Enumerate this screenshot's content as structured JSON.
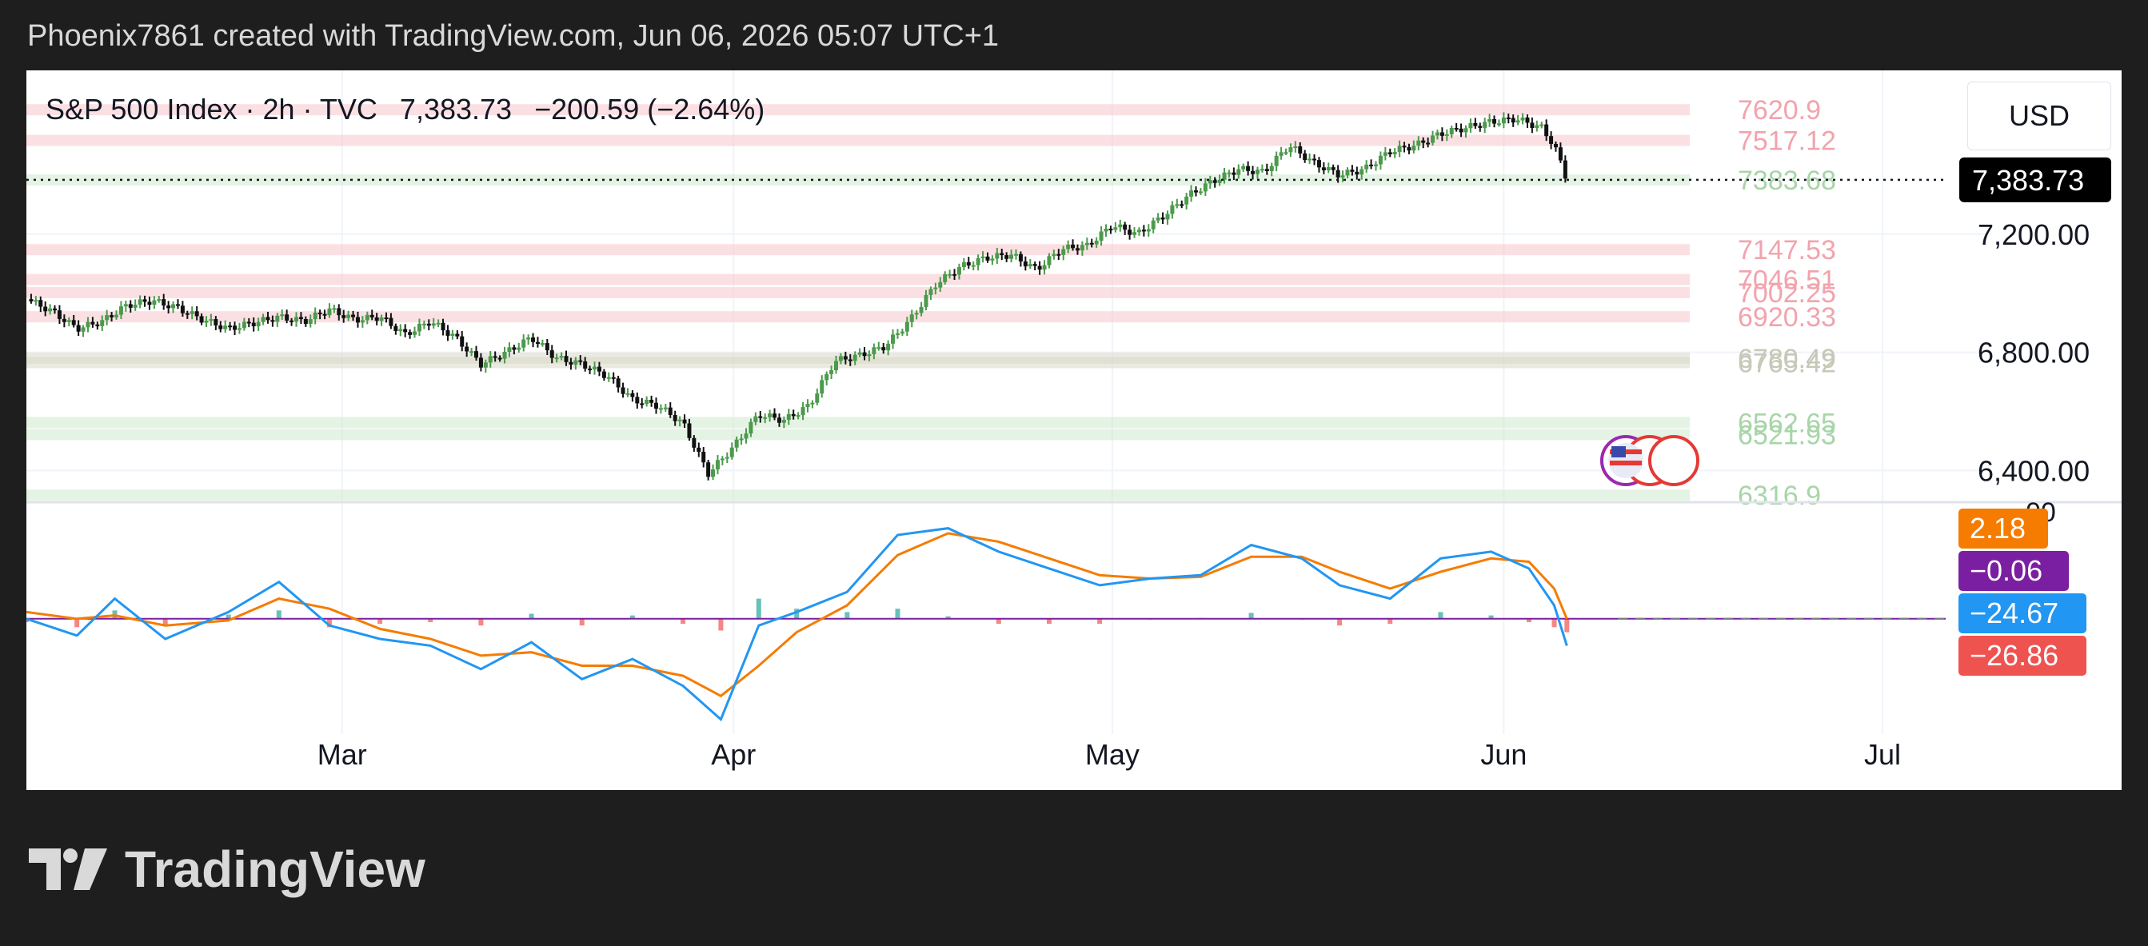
{
  "header": {
    "credit": "Phoenix7861 created with TradingView.com, Jun 06, 2026 05:07 UTC+1"
  },
  "legend": {
    "symbol": "S&P 500 Index · 2h · TVC",
    "price": "7,383.73",
    "change": "−200.59 (−2.64%)"
  },
  "currency": "USD",
  "branding": {
    "logo_text": "TradingView"
  },
  "colors": {
    "up": "#4c9a4c",
    "down": "#111111",
    "macd": "#2196f3",
    "signal": "#f57c00",
    "hist_up": "#26a69a",
    "hist_down": "#ef5350",
    "zone_red": "#f8c6cc",
    "zone_green": "#cfe9cf"
  },
  "chart_data": [
    {
      "type": "candlestick",
      "title": "S&P 500 Index · 2h · TVC",
      "x_range": [
        "2026-02-04",
        "2026-07-06"
      ],
      "x_ticks": [
        "Mar",
        "Apr",
        "May",
        "Jun",
        "Jul"
      ],
      "x_tick_dates": [
        "2026-03-01",
        "2026-04-01",
        "2026-05-01",
        "2026-06-01",
        "2026-07-01"
      ],
      "ylim": [
        6320,
        7700
      ],
      "y_ticks": [
        6400,
        6800,
        7200
      ],
      "y_tick_labels": [
        "6,400.00",
        "6,800.00",
        "7,200.00"
      ],
      "last_price": 7383.73,
      "last_price_label": "7,383.73",
      "grid": true,
      "series_points": [
        [
          "2026-02-04",
          6980
        ],
        [
          "2026-02-06",
          6940
        ],
        [
          "2026-02-08",
          6880
        ],
        [
          "2026-02-10",
          6905
        ],
        [
          "2026-02-12",
          6960
        ],
        [
          "2026-02-14",
          6975
        ],
        [
          "2026-02-16",
          6950
        ],
        [
          "2026-02-18",
          6910
        ],
        [
          "2026-02-20",
          6880
        ],
        [
          "2026-02-22",
          6900
        ],
        [
          "2026-02-24",
          6920
        ],
        [
          "2026-02-26",
          6905
        ],
        [
          "2026-02-28",
          6945
        ],
        [
          "2026-03-02",
          6910
        ],
        [
          "2026-03-04",
          6920
        ],
        [
          "2026-03-06",
          6860
        ],
        [
          "2026-03-08",
          6905
        ],
        [
          "2026-03-10",
          6850
        ],
        [
          "2026-03-12",
          6760
        ],
        [
          "2026-03-14",
          6800
        ],
        [
          "2026-03-16",
          6850
        ],
        [
          "2026-03-18",
          6780
        ],
        [
          "2026-03-20",
          6760
        ],
        [
          "2026-03-22",
          6720
        ],
        [
          "2026-03-24",
          6640
        ],
        [
          "2026-03-26",
          6620
        ],
        [
          "2026-03-28",
          6560
        ],
        [
          "2026-03-30",
          6390
        ],
        [
          "2026-04-01",
          6480
        ],
        [
          "2026-04-03",
          6590
        ],
        [
          "2026-04-05",
          6570
        ],
        [
          "2026-04-07",
          6620
        ],
        [
          "2026-04-09",
          6770
        ],
        [
          "2026-04-11",
          6790
        ],
        [
          "2026-04-13",
          6820
        ],
        [
          "2026-04-15",
          6910
        ],
        [
          "2026-04-17",
          7030
        ],
        [
          "2026-04-19",
          7090
        ],
        [
          "2026-04-21",
          7120
        ],
        [
          "2026-04-23",
          7130
        ],
        [
          "2026-04-25",
          7080
        ],
        [
          "2026-04-27",
          7150
        ],
        [
          "2026-04-29",
          7160
        ],
        [
          "2026-05-01",
          7230
        ],
        [
          "2026-05-03",
          7200
        ],
        [
          "2026-05-05",
          7260
        ],
        [
          "2026-05-07",
          7330
        ],
        [
          "2026-05-09",
          7380
        ],
        [
          "2026-05-11",
          7420
        ],
        [
          "2026-05-13",
          7410
        ],
        [
          "2026-05-15",
          7500
        ],
        [
          "2026-05-17",
          7440
        ],
        [
          "2026-05-19",
          7400
        ],
        [
          "2026-05-21",
          7420
        ],
        [
          "2026-05-23",
          7480
        ],
        [
          "2026-05-25",
          7500
        ],
        [
          "2026-05-27",
          7540
        ],
        [
          "2026-05-29",
          7560
        ],
        [
          "2026-05-31",
          7580
        ],
        [
          "2026-06-02",
          7590
        ],
        [
          "2026-06-04",
          7560
        ],
        [
          "2026-06-05",
          7500
        ],
        [
          "2026-06-06",
          7383.73
        ]
      ],
      "levels": [
        {
          "value": 7620.9,
          "label": "7620.9",
          "kind": "resistance"
        },
        {
          "value": 7517.12,
          "label": "7517.12",
          "kind": "resistance"
        },
        {
          "value": 7383.68,
          "label": "7383.68",
          "kind": "support"
        },
        {
          "value": 7147.53,
          "label": "7147.53",
          "kind": "resistance"
        },
        {
          "value": 7046.51,
          "label": "7046.51",
          "kind": "resistance"
        },
        {
          "value": 7002.25,
          "label": "7002.25",
          "kind": "resistance"
        },
        {
          "value": 6920.33,
          "label": "6920.33",
          "kind": "resistance"
        },
        {
          "value": 6780.49,
          "label": "6780.49",
          "kind": "neutral"
        },
        {
          "value": 6765.42,
          "label": "6765.42",
          "kind": "neutral"
        },
        {
          "value": 6562.65,
          "label": "6562.65",
          "kind": "support"
        },
        {
          "value": 6521.93,
          "label": "6521.93",
          "kind": "support"
        },
        {
          "value": 6316.9,
          "label": "6316.9",
          "kind": "support"
        }
      ]
    },
    {
      "type": "line",
      "indicator": "MACD",
      "ylim": [
        -320,
        300
      ],
      "zero_line": true,
      "y_partial_label": "00",
      "badges": [
        {
          "label": "2.18",
          "color": "#f57c00"
        },
        {
          "label": "−0.06",
          "color": "#7b1fa2"
        },
        {
          "label": "−24.67",
          "color": "#2196f3"
        },
        {
          "label": "−26.86",
          "color": "#ef5350"
        }
      ],
      "macd_points": [
        [
          "2026-02-04",
          0
        ],
        [
          "2026-02-08",
          -50
        ],
        [
          "2026-02-11",
          60
        ],
        [
          "2026-02-15",
          -60
        ],
        [
          "2026-02-20",
          20
        ],
        [
          "2026-02-24",
          110
        ],
        [
          "2026-02-28",
          -20
        ],
        [
          "2026-03-04",
          -60
        ],
        [
          "2026-03-08",
          -80
        ],
        [
          "2026-03-12",
          -150
        ],
        [
          "2026-03-16",
          -70
        ],
        [
          "2026-03-20",
          -180
        ],
        [
          "2026-03-24",
          -120
        ],
        [
          "2026-03-28",
          -200
        ],
        [
          "2026-03-31",
          -300
        ],
        [
          "2026-04-03",
          -20
        ],
        [
          "2026-04-06",
          20
        ],
        [
          "2026-04-10",
          80
        ],
        [
          "2026-04-14",
          250
        ],
        [
          "2026-04-18",
          270
        ],
        [
          "2026-04-22",
          200
        ],
        [
          "2026-04-26",
          150
        ],
        [
          "2026-04-30",
          100
        ],
        [
          "2026-05-04",
          120
        ],
        [
          "2026-05-08",
          130
        ],
        [
          "2026-05-12",
          220
        ],
        [
          "2026-05-16",
          180
        ],
        [
          "2026-05-19",
          100
        ],
        [
          "2026-05-23",
          60
        ],
        [
          "2026-05-27",
          180
        ],
        [
          "2026-05-31",
          200
        ],
        [
          "2026-06-03",
          150
        ],
        [
          "2026-06-05",
          40
        ],
        [
          "2026-06-06",
          -80
        ]
      ],
      "signal_points": [
        [
          "2026-02-04",
          20
        ],
        [
          "2026-02-08",
          0
        ],
        [
          "2026-02-11",
          10
        ],
        [
          "2026-02-15",
          -20
        ],
        [
          "2026-02-20",
          -5
        ],
        [
          "2026-02-24",
          60
        ],
        [
          "2026-02-28",
          30
        ],
        [
          "2026-03-04",
          -30
        ],
        [
          "2026-03-08",
          -60
        ],
        [
          "2026-03-12",
          -110
        ],
        [
          "2026-03-16",
          -100
        ],
        [
          "2026-03-20",
          -140
        ],
        [
          "2026-03-24",
          -140
        ],
        [
          "2026-03-28",
          -170
        ],
        [
          "2026-03-31",
          -230
        ],
        [
          "2026-04-03",
          -140
        ],
        [
          "2026-04-06",
          -40
        ],
        [
          "2026-04-10",
          40
        ],
        [
          "2026-04-14",
          190
        ],
        [
          "2026-04-18",
          255
        ],
        [
          "2026-04-22",
          230
        ],
        [
          "2026-04-26",
          180
        ],
        [
          "2026-04-30",
          130
        ],
        [
          "2026-05-04",
          120
        ],
        [
          "2026-05-08",
          125
        ],
        [
          "2026-05-12",
          185
        ],
        [
          "2026-05-16",
          185
        ],
        [
          "2026-05-19",
          140
        ],
        [
          "2026-05-23",
          90
        ],
        [
          "2026-05-27",
          140
        ],
        [
          "2026-05-31",
          180
        ],
        [
          "2026-06-03",
          170
        ],
        [
          "2026-06-05",
          90
        ],
        [
          "2026-06-06",
          0
        ]
      ]
    }
  ]
}
